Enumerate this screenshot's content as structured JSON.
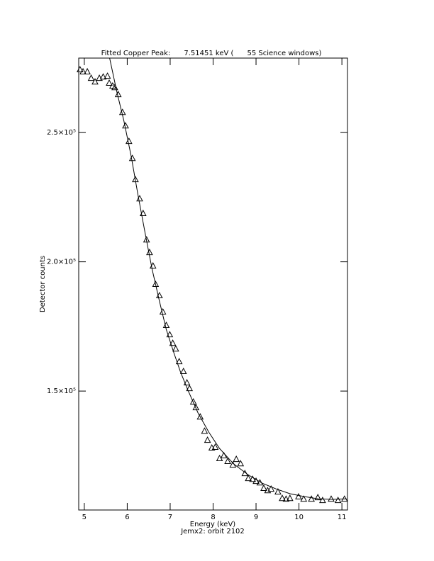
{
  "chart_data": {
    "type": "scatter",
    "title": "Fitted Copper Peak:      7.51451 keV (      55 Science windows)",
    "x_label": "Energy (keV)",
    "subtitle": "Jemx2: orbit 2102",
    "y_label": "Detector counts",
    "xlim": [
      4.87,
      11.13
    ],
    "ylim": [
      104000,
      278800
    ],
    "xticks": [
      5,
      6,
      7,
      8,
      9,
      10,
      11
    ],
    "yticks": [
      {
        "value": 150000,
        "label": "1.5×10⁵"
      },
      {
        "value": 200000,
        "label": "2.0×10⁵"
      },
      {
        "value": 250000,
        "label": "2.5×10⁵"
      }
    ],
    "series": [
      {
        "style": "triangle",
        "color": "#000000",
        "x": [
          4.9,
          4.97,
          5.07,
          5.16,
          5.25,
          5.35,
          5.44,
          5.54,
          5.58,
          5.66,
          5.71,
          5.79,
          5.89,
          5.96,
          6.04,
          6.12,
          6.19,
          6.29,
          6.37,
          6.45,
          6.52,
          6.6,
          6.66,
          6.75,
          6.83,
          6.91,
          6.99,
          7.06,
          7.13,
          7.21,
          7.31,
          7.39,
          7.45,
          7.54,
          7.6,
          7.7,
          7.8,
          7.87,
          7.97,
          8.05,
          8.15,
          8.25,
          8.34,
          8.46,
          8.54,
          8.64,
          8.74,
          8.82,
          8.92,
          9.0,
          9.09,
          9.18,
          9.27,
          9.35,
          9.51,
          9.61,
          9.7,
          9.79,
          9.99,
          10.11,
          10.29,
          10.44,
          10.55,
          10.75,
          10.91,
          11.06
        ],
        "values": [
          274400,
          273600,
          273600,
          271100,
          269700,
          271100,
          271600,
          271900,
          269200,
          268100,
          267500,
          264800,
          257900,
          252700,
          246700,
          240100,
          231900,
          224500,
          218800,
          208600,
          203700,
          198500,
          191400,
          187000,
          180700,
          175500,
          171900,
          168600,
          166400,
          161500,
          157700,
          153300,
          151100,
          145900,
          143700,
          140100,
          134600,
          131100,
          128100,
          128400,
          124000,
          125100,
          122900,
          121500,
          123700,
          122000,
          118200,
          116300,
          116000,
          115200,
          114600,
          112500,
          111600,
          112200,
          111100,
          108600,
          108300,
          108600,
          109200,
          108300,
          108300,
          108900,
          107800,
          108300,
          107800,
          108300
        ]
      },
      {
        "style": "line",
        "color": "#000000",
        "x": [
          5.59,
          5.76,
          5.92,
          6.09,
          6.25,
          6.42,
          6.58,
          6.75,
          6.91,
          7.08,
          7.24,
          7.41,
          7.65,
          7.9,
          8.15,
          8.48,
          8.81,
          9.14,
          9.46,
          9.79,
          10.12,
          10.45,
          10.78,
          11.11
        ],
        "values": [
          278800,
          265600,
          254700,
          241000,
          225900,
          210800,
          197100,
          184800,
          173800,
          165100,
          157400,
          150500,
          141500,
          134100,
          127800,
          121800,
          117700,
          114400,
          112200,
          110300,
          109200,
          108300,
          108100,
          108300
        ]
      }
    ]
  }
}
